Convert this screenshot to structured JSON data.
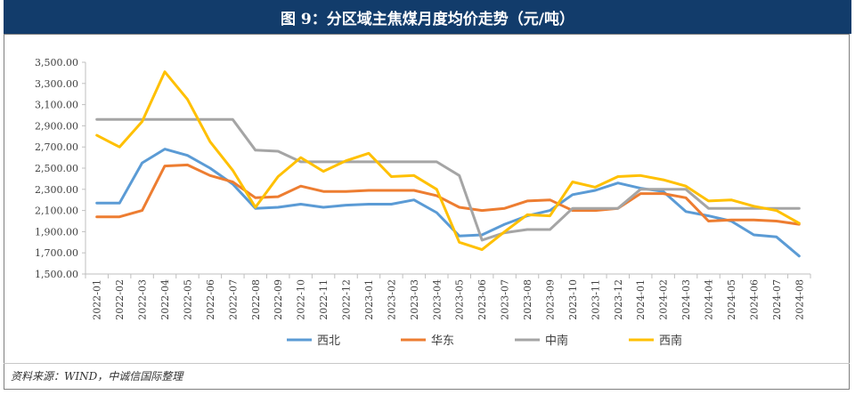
{
  "header": {
    "title": "图 9：分区域主焦煤月度均价走势（元/吨）"
  },
  "source_note": "资料来源：WIND，中诚信国际整理",
  "chart_data": {
    "type": "line",
    "title": "图 9：分区域主焦煤月度均价走势（元/吨）",
    "xlabel": "",
    "ylabel": "",
    "ylim": [
      1500,
      3500
    ],
    "yticks": [
      1500,
      1700,
      1900,
      2100,
      2300,
      2500,
      2700,
      2900,
      3100,
      3300,
      3500
    ],
    "ytick_labels": [
      "1,500.00",
      "1,700.00",
      "1,900.00",
      "2,100.00",
      "2,300.00",
      "2,500.00",
      "2,700.00",
      "2,900.00",
      "3,100.00",
      "3,300.00",
      "3,500.00"
    ],
    "grid": false,
    "legend_position": "bottom",
    "categories": [
      "2022-01",
      "2022-02",
      "2022-03",
      "2022-04",
      "2022-05",
      "2022-06",
      "2022-07",
      "2022-08",
      "2022-09",
      "2022-10",
      "2022-11",
      "2022-12",
      "2023-01",
      "2023-02",
      "2023-03",
      "2023-04",
      "2023-05",
      "2023-06",
      "2023-07",
      "2023-08",
      "2023-09",
      "2023-10",
      "2023-11",
      "2023-12",
      "2024-01",
      "2024-02",
      "2024-03",
      "2024-04",
      "2024-05",
      "2024-06",
      "2024-07",
      "2024-08"
    ],
    "series": [
      {
        "name": "西北",
        "color": "#5b9bd5",
        "values": [
          2170,
          2170,
          2550,
          2680,
          2620,
          2500,
          2350,
          2120,
          2130,
          2160,
          2130,
          2150,
          2160,
          2160,
          2200,
          2080,
          1860,
          1870,
          1970,
          2050,
          2100,
          2250,
          2290,
          2360,
          2310,
          2280,
          2090,
          2050,
          2000,
          1870,
          1850,
          1670
        ]
      },
      {
        "name": "华东",
        "color": "#ed7d31",
        "values": [
          2040,
          2040,
          2100,
          2520,
          2530,
          2430,
          2370,
          2220,
          2230,
          2330,
          2280,
          2280,
          2290,
          2290,
          2290,
          2240,
          2130,
          2100,
          2120,
          2190,
          2200,
          2100,
          2100,
          2120,
          2260,
          2260,
          2220,
          2000,
          2010,
          2010,
          2000,
          1970
        ]
      },
      {
        "name": "中南",
        "color": "#a5a5a5",
        "values": [
          2960,
          2960,
          2960,
          2960,
          2960,
          2960,
          2960,
          2670,
          2660,
          2560,
          2560,
          2560,
          2560,
          2560,
          2560,
          2560,
          2430,
          1820,
          1890,
          1920,
          1920,
          2120,
          2120,
          2120,
          2300,
          2300,
          2300,
          2120,
          2120,
          2120,
          2120,
          2120
        ]
      },
      {
        "name": "西南",
        "color": "#ffc000",
        "values": [
          2810,
          2700,
          2940,
          3410,
          3150,
          2750,
          2480,
          2130,
          2420,
          2600,
          2470,
          2570,
          2640,
          2420,
          2430,
          2300,
          1800,
          1730,
          1900,
          2060,
          2050,
          2370,
          2320,
          2420,
          2430,
          2390,
          2330,
          2190,
          2200,
          2140,
          2100,
          1980
        ]
      }
    ]
  }
}
